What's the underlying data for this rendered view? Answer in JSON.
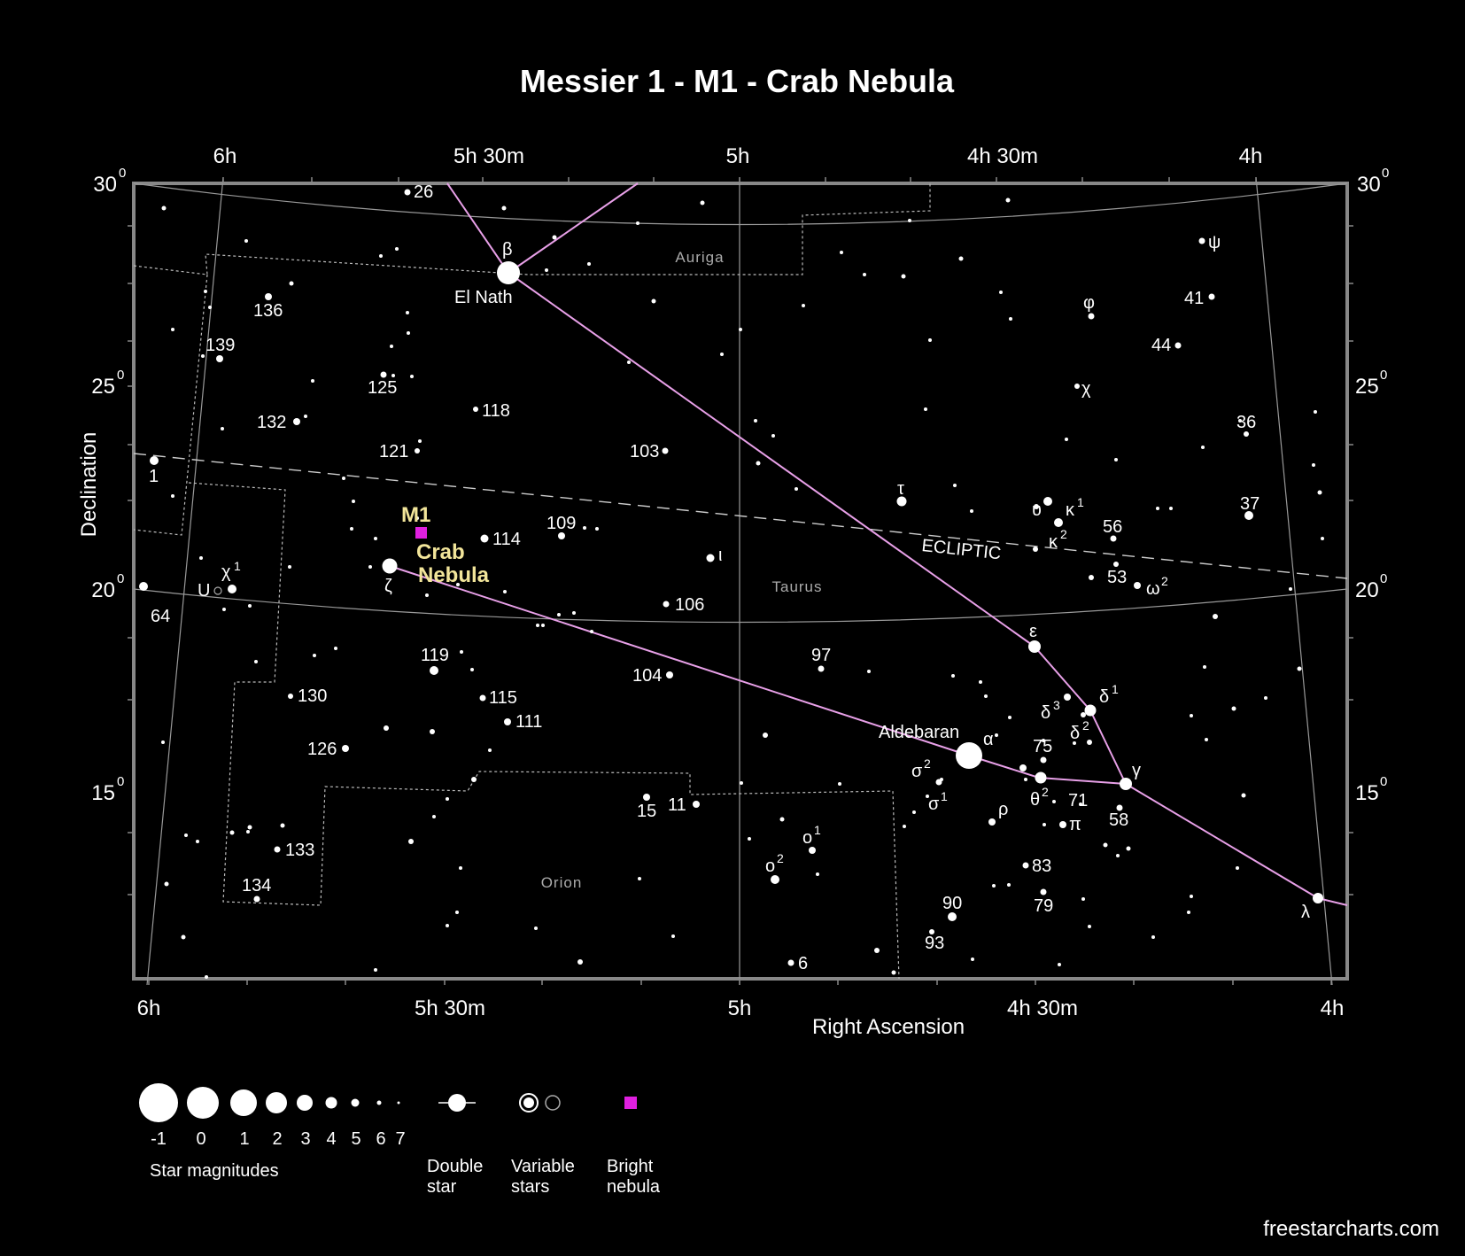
{
  "title": "Messier 1 - M1 - Crab Nebula",
  "axes": {
    "xlabel": "Right Ascension",
    "ylabel": "Declination",
    "ra_top": [
      "6h",
      "5h 30m",
      "5h",
      "4h 30m",
      "4h"
    ],
    "ra_bottom": [
      "6h",
      "5h 30m",
      "5h",
      "4h 30m",
      "4h"
    ],
    "dec_left": [
      "30",
      "25",
      "20",
      "15"
    ],
    "dec_right": [
      "30",
      "25",
      "20",
      "15"
    ],
    "dec_sup": "0"
  },
  "constellations": [
    "Auriga",
    "Taurus",
    "Orion"
  ],
  "ecliptic_label": "ECLIPTIC",
  "target": {
    "name": "M1",
    "common": [
      "Crab",
      "Nebula"
    ],
    "color": "#e020e0"
  },
  "named_stars": [
    {
      "label": "El Nath",
      "greek": "β"
    },
    {
      "label": "Aldebaran",
      "greek": "α"
    }
  ],
  "star_labels": [
    "26",
    "136",
    "139",
    "125",
    "132",
    "118",
    "121",
    "103",
    "1",
    "109",
    "114",
    "106",
    "119",
    "104",
    "115",
    "111",
    "130",
    "126",
    "133",
    "134",
    "15",
    "11",
    "97",
    "6",
    "90",
    "93",
    "83",
    "79",
    "75",
    "71",
    "58",
    "56",
    "53",
    "37",
    "36",
    "44",
    "41",
    "υ",
    "κ",
    "κ",
    "ω",
    "ε",
    "δ",
    "δ",
    "δ",
    "γ",
    "θ",
    "σ",
    "σ",
    "ρ",
    "π",
    "τ",
    "χ",
    "φ",
    "ψ",
    "λ",
    "ζ",
    "ι",
    "χ",
    "U",
    "64",
    "o",
    "o"
  ],
  "legend": {
    "magnitudes": [
      "-1",
      "0",
      "1",
      "2",
      "3",
      "4",
      "5",
      "6",
      "7"
    ],
    "magnitudes_caption": "Star magnitudes",
    "double_star": [
      "Double",
      "star"
    ],
    "variable_stars": [
      "Variable",
      "stars"
    ],
    "bright_nebula": [
      "Bright",
      "nebula"
    ]
  },
  "credit": "freestarcharts.com",
  "colors": {
    "background": "#000000",
    "frame": "#888888",
    "lines": "#e8a0e8",
    "nebula": "#e020e0",
    "m1_text": "#f2e59a"
  }
}
